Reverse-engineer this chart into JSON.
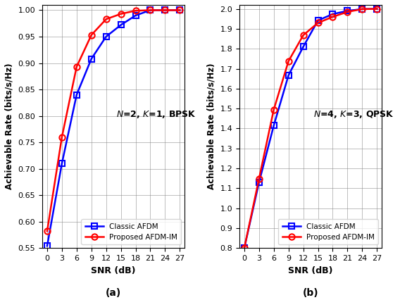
{
  "snr": [
    0,
    3,
    6,
    9,
    12,
    15,
    18,
    21,
    24,
    27
  ],
  "plot_a": {
    "classic_afdm": [
      0.554,
      0.71,
      0.84,
      0.908,
      0.95,
      0.972,
      0.99,
      1.0,
      1.0,
      1.0
    ],
    "proposed_afdm_im": [
      0.582,
      0.76,
      0.893,
      0.953,
      0.983,
      0.993,
      0.999,
      1.0,
      1.0,
      1.0
    ],
    "ylabel": "Achievable Rate (bits/s/Hz)",
    "xlabel": "SNR (dB)",
    "annotation": "N=2, K=1, BPSK",
    "label": "(a)",
    "ylim": [
      0.55,
      1.01
    ],
    "yticks": [
      0.55,
      0.6,
      0.65,
      0.7,
      0.75,
      0.8,
      0.85,
      0.9,
      0.95,
      1.0
    ]
  },
  "plot_b": {
    "classic_afdm": [
      0.8,
      1.13,
      1.415,
      1.667,
      1.81,
      1.942,
      1.974,
      1.99,
      1.999,
      2.0
    ],
    "proposed_afdm_im": [
      0.8,
      1.148,
      1.495,
      1.738,
      1.868,
      1.93,
      1.96,
      1.985,
      1.999,
      2.0
    ],
    "ylabel": "Achievable Rate (bits/s/Hz)",
    "xlabel": "SNR (dB)",
    "annotation": "N=4, K=3, QPSK",
    "label": "(b)",
    "ylim": [
      0.8,
      2.02
    ],
    "yticks": [
      0.8,
      0.9,
      1.0,
      1.1,
      1.2,
      1.3,
      1.4,
      1.5,
      1.6,
      1.7,
      1.8,
      1.9,
      2.0
    ]
  },
  "classic_color": "#0000FF",
  "proposed_color": "#FF0000",
  "classic_marker": "s",
  "proposed_marker": "o",
  "classic_label": "Classic AFDM",
  "proposed_label": "Proposed AFDM-IM",
  "linewidth": 1.8,
  "markersize": 6
}
